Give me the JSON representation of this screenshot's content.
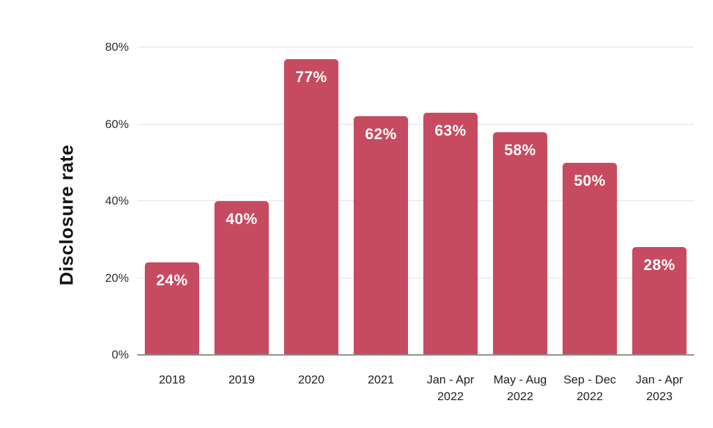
{
  "chart_data": {
    "type": "bar",
    "title": "",
    "xlabel": "",
    "ylabel": "Disclosure rate",
    "categories": [
      "2018",
      "2019",
      "2020",
      "2021",
      "Jan - Apr\n2022",
      "May - Aug\n2022",
      "Sep - Dec\n2022",
      "Jan - Apr\n2023"
    ],
    "values": [
      24,
      40,
      77,
      62,
      63,
      58,
      50,
      28
    ],
    "value_labels": [
      "24%",
      "40%",
      "77%",
      "62%",
      "63%",
      "58%",
      "50%",
      "28%"
    ],
    "y_ticks": [
      0,
      20,
      40,
      60,
      80
    ],
    "y_tick_labels": [
      "0%",
      "20%",
      "40%",
      "60%",
      "80%"
    ],
    "ylim": [
      0,
      80
    ],
    "grid": "horizontal",
    "legend_position": "none",
    "colors": {
      "bar": "#C74B60",
      "bar_value_label": "#FFFFFF",
      "gridline": "#E0E0E0",
      "axis_line": "#8E8E8E",
      "tick_text": "#2D2D2D",
      "axis_title_text": "#151515"
    }
  }
}
